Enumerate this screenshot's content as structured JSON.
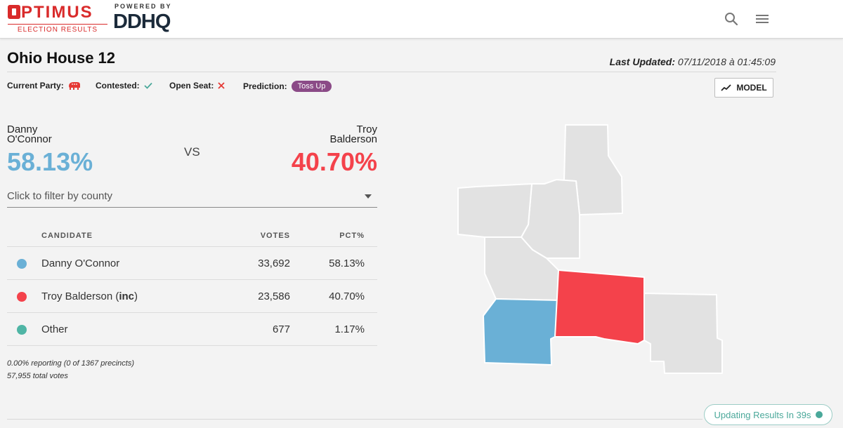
{
  "header": {
    "brand_name": "PTIMUS",
    "brand_sub": "ELECTION RESULTS",
    "powered_label": "POWERED BY",
    "powered_logo": "DDHQ",
    "icons": [
      "search-icon",
      "menu-icon"
    ]
  },
  "race": {
    "title": "Ohio House 12",
    "last_updated_label": "Last Updated:",
    "last_updated_value": "07/11/2018 à 01:45:09"
  },
  "meta": {
    "current_party_label": "Current Party:",
    "contested_label": "Contested:",
    "open_seat_label": "Open Seat:",
    "prediction_label": "Prediction:",
    "prediction_value": "Toss Up",
    "model_label": "MODEL"
  },
  "matchup": {
    "left_first": "Danny",
    "left_last": "O'Connor",
    "left_pct": "58.13%",
    "vs": "VS",
    "right_first": "Troy",
    "right_last": "Balderson",
    "right_pct": "40.70%"
  },
  "filter": {
    "placeholder": "Click to filter by county"
  },
  "table": {
    "headers": {
      "candidate": "CANDIDATE",
      "votes": "VOTES",
      "pct": "PCT%"
    },
    "rows": [
      {
        "name": "Danny O'Connor",
        "votes": "33,692",
        "pct": "58.13%",
        "color": "#6ab0d6"
      },
      {
        "name": "Troy Balderson",
        "inc": "inc",
        "votes": "23,586",
        "pct": "40.70%",
        "color": "#f4424b"
      },
      {
        "name": "Other",
        "votes": "677",
        "pct": "1.17%",
        "color": "#4fb5a5"
      }
    ]
  },
  "reporting": {
    "precincts": "0.00% reporting (0 of 1367 precincts)",
    "total": "57,955 total votes"
  },
  "colors": {
    "dem": "#6ab0d6",
    "rep": "#f4424b",
    "other": "#4fb5a5",
    "county_gray": "#e2e2e2",
    "prediction": "#8b4a87"
  },
  "status": {
    "updating": "Updating Results In 39s"
  }
}
